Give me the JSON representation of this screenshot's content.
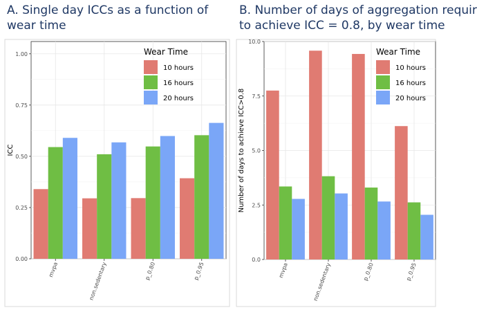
{
  "chart_data": [
    {
      "type": "bar",
      "title_lines": [
        "A. Single day ICCs as a function of",
        "wear time"
      ],
      "xlabel": "",
      "ylabel": "ICC",
      "ylim": [
        0,
        1.06
      ],
      "yticks": [
        "0.00",
        "0.25",
        "0.50",
        "0.75",
        "1.00"
      ],
      "categories": [
        "mvpa",
        "non.sedentary",
        "p_0.80",
        "p_0.95"
      ],
      "series": [
        {
          "name": "10 hours",
          "color": "#e07b72",
          "values": [
            0.34,
            0.295,
            0.296,
            0.393
          ]
        },
        {
          "name": "16 hours",
          "color": "#6fbe44",
          "values": [
            0.545,
            0.51,
            0.548,
            0.603
          ]
        },
        {
          "name": "20 hours",
          "color": "#7aa6f7",
          "values": [
            0.59,
            0.568,
            0.599,
            0.663
          ]
        }
      ],
      "legend": {
        "title": "Wear Time",
        "position": "top-right"
      },
      "grid": true
    },
    {
      "type": "bar",
      "title_lines": [
        "B. Number of days of aggregation required",
        "to achieve ICC = 0.8, by wear time"
      ],
      "xlabel": "",
      "ylabel": "Number of days to achieve ICC>0.8",
      "ylim": [
        0,
        10
      ],
      "yticks": [
        "0.0",
        "2.5",
        "5.0",
        "7.5",
        "10.0"
      ],
      "categories": [
        "mvpa",
        "non.sedentary",
        "p_0.80",
        "p_0.95"
      ],
      "series": [
        {
          "name": "10 hours",
          "color": "#e07b72",
          "values": [
            7.75,
            9.58,
            9.43,
            6.12
          ]
        },
        {
          "name": "16 hours",
          "color": "#6fbe44",
          "values": [
            3.35,
            3.82,
            3.3,
            2.62
          ]
        },
        {
          "name": "20 hours",
          "color": "#7aa6f7",
          "values": [
            2.78,
            3.03,
            2.66,
            2.05
          ]
        }
      ],
      "legend": {
        "title": "Wear Time",
        "position": "top-right"
      },
      "grid": true
    }
  ]
}
